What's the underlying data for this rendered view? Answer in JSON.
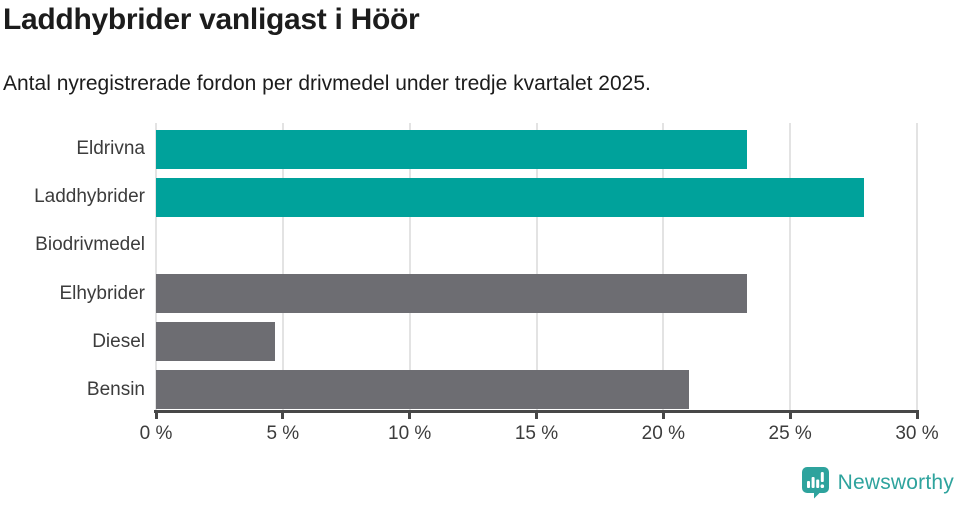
{
  "chart_data": {
    "type": "bar",
    "orientation": "horizontal",
    "title": "Laddhybrider vanligast i Höör",
    "subtitle": "Antal nyregistrerade fordon per drivmedel under tredje kvartalet 2025.",
    "categories": [
      "Eldrivna",
      "Laddhybrider",
      "Biodrivmedel",
      "Elhybrider",
      "Diesel",
      "Bensin"
    ],
    "values": [
      23.3,
      27.9,
      0,
      23.3,
      4.7,
      21.0
    ],
    "unit": "%",
    "xlim": [
      0,
      30
    ],
    "x_ticks": [
      0,
      5,
      10,
      15,
      20,
      25,
      30
    ],
    "x_tick_labels": [
      "0 %",
      "5 %",
      "10 %",
      "15 %",
      "20 %",
      "25 %",
      "30 %"
    ],
    "grid": true,
    "legend": "none",
    "bar_colors": [
      "#00a29b",
      "#00a29b",
      "#6d6d72",
      "#6d6d72",
      "#6d6d72",
      "#6d6d72"
    ],
    "highlight_color": "#00a29b",
    "base_color": "#6d6d72",
    "gridline_color": "#e3e3e3",
    "axis_color": "#474747"
  },
  "footer": {
    "logo_text": "Newsworthy",
    "logo_color": "#2ea39d",
    "logo_icon": "bar-chart-speech-bubble-icon"
  }
}
